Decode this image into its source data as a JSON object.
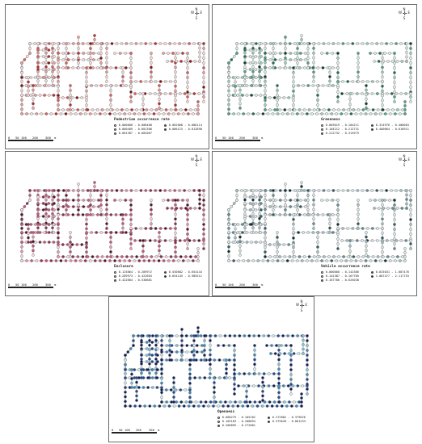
{
  "compass": {
    "n": "N",
    "w": "W",
    "e": "E",
    "s": "S"
  },
  "scale_bar": {
    "ticks": [
      "0",
      "50",
      "100",
      "200",
      "300"
    ],
    "unit": "m"
  },
  "panels": [
    {
      "title": "Pedestrian occurrence rate",
      "legend": [
        {
          "label": "0.000000 - 0.000408",
          "color": "#f7dede"
        },
        {
          "label": "0.000409 - 0.001300",
          "color": "#ee9c9c"
        },
        {
          "label": "0.001307 - 0.002067",
          "color": "#e05b5b"
        },
        {
          "label": "0.002068 - 0.006114",
          "color": "#c22a2a"
        },
        {
          "label": "0.006115 - 0.012890",
          "color": "#8b0f0f"
        }
      ]
    },
    {
      "title": "Greenness",
      "legend": [
        {
          "label": "0.003019 - 0.104211",
          "color": "#dcefe7"
        },
        {
          "label": "0.104212 - 0.212731",
          "color": "#9fcfbc"
        },
        {
          "label": "0.212732 - 0.314975",
          "color": "#4ea386"
        },
        {
          "label": "0.314976 - 0.400063",
          "color": "#1d6f55"
        },
        {
          "label": "0.400064 - 0.616911",
          "color": "#0b3d2c"
        }
      ]
    },
    {
      "title": "Enclosure",
      "legend": [
        {
          "label": "0.125864 - 0.289972",
          "color": "#f4dbe3"
        },
        {
          "label": "0.289973 - 0.422603",
          "color": "#e39bb2"
        },
        {
          "label": "0.422604 - 0.530681",
          "color": "#c9577d"
        },
        {
          "label": "0.530682 - 0.654144",
          "color": "#962c55"
        },
        {
          "label": "0.654145 - 0.985511",
          "color": "#5c0f31"
        }
      ]
    },
    {
      "title": "Vehicle occurrence rate",
      "legend": [
        {
          "label": "0.000000 - 0.142386",
          "color": "#dde8ea"
        },
        {
          "label": "0.142387 - 0.167785",
          "color": "#a7c3c8"
        },
        {
          "label": "0.167786 - 0.625030",
          "color": "#64909a"
        },
        {
          "label": "0.625031 - 1.087476",
          "color": "#2f5d68"
        },
        {
          "label": "1.087477 - 2.117753",
          "color": "#0f2f38"
        }
      ]
    },
    {
      "title": "Openness",
      "legend": [
        {
          "label": "0.008279 - 0.105182",
          "color": "#d9efef"
        },
        {
          "label": "0.105183 - 0.208894",
          "color": "#88c8d6"
        },
        {
          "label": "0.208895 - 0.272881",
          "color": "#3c8fbf"
        },
        {
          "label": "0.272882 - 0.379626",
          "color": "#1d4a9a"
        },
        {
          "label": "0.379628 - 0.861253",
          "color": "#0c1f5e"
        }
      ]
    }
  ]
}
